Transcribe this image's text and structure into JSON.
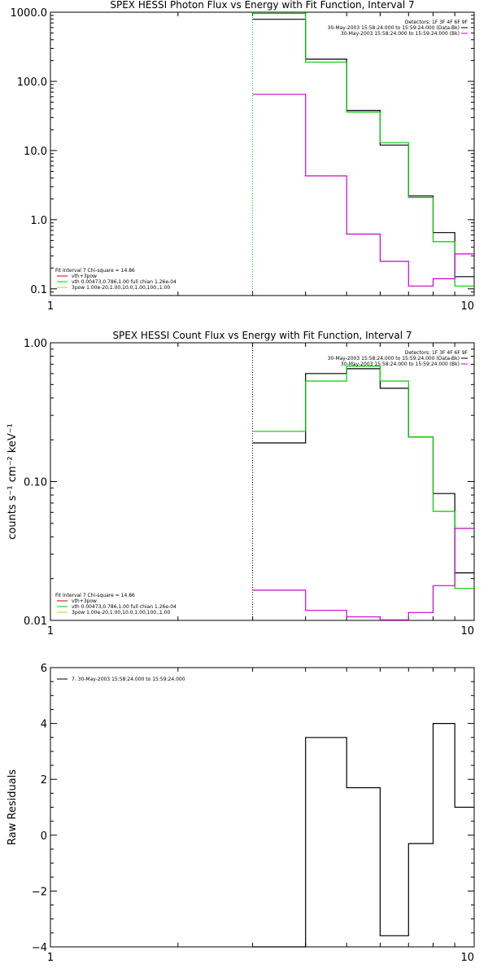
{
  "chart_data": [
    {
      "type": "line",
      "title": "SPEX HESSI Photon Flux vs Energy with Fit Function, Interval 7",
      "xlabel": "",
      "ylabel": "",
      "xscale": "log",
      "yscale": "log",
      "xlim": [
        1,
        10
      ],
      "ylim": [
        0.08,
        1000
      ],
      "x_ticks": [
        {
          "value": 1,
          "label": "1"
        },
        {
          "value": 10,
          "label": "10"
        }
      ],
      "y_ticks": [
        {
          "value": 0.1,
          "label": "0.1"
        },
        {
          "value": 1,
          "label": "1.0"
        },
        {
          "value": 10,
          "label": "10.0"
        },
        {
          "value": 100,
          "label": "100.0"
        },
        {
          "value": 1000,
          "label": "1000.0"
        }
      ],
      "edges": [
        4,
        5,
        6,
        7,
        8,
        9,
        10
      ],
      "vline": 3.0,
      "vline_color": "#00cc00",
      "series": [
        {
          "color": "#000000",
          "values": [
            790,
            210,
            38,
            12,
            2.2,
            0.65,
            0.15
          ]
        },
        {
          "color": "#00cc00",
          "values": [
            960,
            190,
            36,
            13,
            2.1,
            0.48,
            0.11
          ]
        },
        {
          "color": "#cc00cc",
          "values": [
            65,
            4.3,
            0.62,
            0.25,
            0.11,
            0.14,
            0.32
          ]
        }
      ],
      "legend_top": {
        "placement": "top-right",
        "lines": [
          {
            "text": "Detectors: 1F 3F 4F 6F 9F",
            "color": ""
          },
          {
            "text": "30-May-2003 15:58:24.000 to 15:59:24.000 (Data-Bk)",
            "color": "#000000"
          },
          {
            "text": "30-May-2003 15:58:24.000 to 15:59:24.000 (Bk)",
            "color": "#cc00cc"
          }
        ]
      },
      "legend_bottom": {
        "placement": "bottom-left",
        "lines": [
          {
            "text": "Fit Interval 7   Chi-square = 14.86",
            "color": ""
          },
          {
            "text": "vth+3pow",
            "color": "#cc0000"
          },
          {
            "text": "vth 0.00473,0.786,1.00   full chian 1.26e-04",
            "color": "#00cc00"
          },
          {
            "text": "3pow 1.00e-20,1.00,10.0,1.00,100.,1.00",
            "color": "#cccc00"
          }
        ]
      }
    },
    {
      "type": "line",
      "title": "SPEX HESSI Count Flux vs Energy with Fit Function, Interval 7",
      "xlabel": "",
      "ylabel": "counts s⁻¹ cm⁻² keV⁻¹",
      "xscale": "log",
      "yscale": "log",
      "xlim": [
        1,
        10
      ],
      "ylim": [
        0.01,
        1.0
      ],
      "x_ticks": [
        {
          "value": 1,
          "label": "1"
        },
        {
          "value": 10,
          "label": "10"
        }
      ],
      "y_ticks": [
        {
          "value": 0.01,
          "label": "0.01"
        },
        {
          "value": 0.1,
          "label": "0.10"
        },
        {
          "value": 1,
          "label": "1.00"
        }
      ],
      "edges": [
        4,
        5,
        6,
        7,
        8,
        9,
        10
      ],
      "vline": 3.0,
      "vline_color": "#000000",
      "series": [
        {
          "color": "#000000",
          "values": [
            0.19,
            0.6,
            0.65,
            0.47,
            0.21,
            0.082,
            0.022
          ]
        },
        {
          "color": "#00cc00",
          "values": [
            0.23,
            0.53,
            0.68,
            0.53,
            0.21,
            0.061,
            0.017
          ]
        },
        {
          "color": "#cc00cc",
          "values": [
            0.0165,
            0.0118,
            0.0106,
            0.0101,
            0.0114,
            0.0178,
            0.046
          ]
        }
      ],
      "legend_top": {
        "placement": "top-right",
        "lines": [
          {
            "text": "Detectors: 1F 3F 4F 6F 9F",
            "color": ""
          },
          {
            "text": "30-May-2003 15:58:24.000 to 15:59:24.000 (Data-Bk)",
            "color": "#000000"
          },
          {
            "text": "30-May-2003 15:58:24.000 to 15:59:24.000 (Bk)",
            "color": "#cc00cc"
          }
        ]
      },
      "legend_bottom": {
        "placement": "bottom-left",
        "lines": [
          {
            "text": "Fit Interval 7   Chi-square = 14.86",
            "color": ""
          },
          {
            "text": "vth+3pow",
            "color": "#cc0000"
          },
          {
            "text": "vth 0.00473,0.786,1.00   full chian 1.26e-04",
            "color": "#00cc00"
          },
          {
            "text": "3pow 1.00e-20,1.00,10.0,1.00,100.,1.00",
            "color": "#cccc00"
          }
        ]
      }
    },
    {
      "type": "line",
      "title": "",
      "xlabel": "",
      "ylabel": "Raw Residuals",
      "xscale": "log",
      "yscale": "linear",
      "xlim": [
        1,
        10
      ],
      "ylim": [
        -4,
        6
      ],
      "x_ticks": [
        {
          "value": 1,
          "label": "1"
        },
        {
          "value": 10,
          "label": "10"
        }
      ],
      "y_ticks": [
        {
          "value": -4,
          "label": "−4"
        },
        {
          "value": -2,
          "label": "−2"
        },
        {
          "value": 0,
          "label": "0"
        },
        {
          "value": 2,
          "label": "2"
        },
        {
          "value": 4,
          "label": "4"
        },
        {
          "value": 6,
          "label": "6"
        }
      ],
      "edges": [
        3,
        4,
        5,
        6,
        7,
        8,
        9,
        10
      ],
      "series": [
        {
          "color": "#000000",
          "values": [
            -4.0,
            3.5,
            1.7,
            -3.6,
            -0.3,
            4.0,
            1.0
          ]
        }
      ],
      "legend_top": {
        "placement": "top-left",
        "lines": [
          {
            "text": "7. 30-May-2003 15:58:24.000 to 15:59:24.000",
            "color": "#000000"
          }
        ]
      }
    }
  ]
}
